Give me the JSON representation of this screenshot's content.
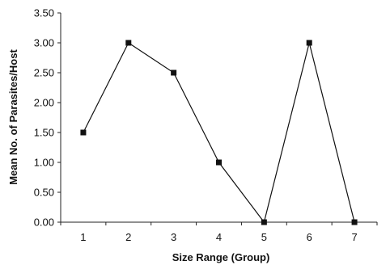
{
  "chart_data": {
    "type": "line",
    "title": "",
    "xlabel": "Size Range (Group)",
    "ylabel": "Mean No. of Parasites/Host",
    "categories": [
      "1",
      "2",
      "3",
      "4",
      "5",
      "6",
      "7"
    ],
    "yticks": [
      "0.00",
      "0.50",
      "1.00",
      "1.50",
      "2.00",
      "2.50",
      "3.00",
      "3.50"
    ],
    "ylim": [
      0,
      3.5
    ],
    "grid": false,
    "legend": "none",
    "marker": "square",
    "series": [
      {
        "values": [
          1.5,
          3.0,
          2.5,
          1.0,
          0.0,
          3.0,
          0.0
        ]
      }
    ]
  }
}
